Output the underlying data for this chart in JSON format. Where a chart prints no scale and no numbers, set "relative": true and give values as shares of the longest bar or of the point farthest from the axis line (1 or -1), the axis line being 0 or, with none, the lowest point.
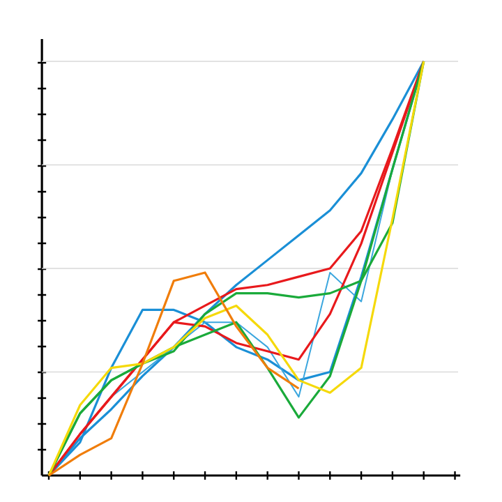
{
  "chart_data": {
    "type": "line",
    "relative": true,
    "grid": "y",
    "marker": "none",
    "line_style": "solid",
    "categories": [
      null,
      null,
      null,
      null,
      null,
      null,
      null,
      null,
      null,
      null,
      null,
      null,
      null,
      null
    ],
    "series": [
      {
        "color": "#1a8fd6",
        "values": [
          0,
          0.09,
          0.16,
          0.24,
          0.31,
          0.39,
          0.46,
          0.52,
          0.58,
          0.64,
          0.73,
          0.86,
          1,
          null
        ]
      },
      {
        "color": "#1a8fd6",
        "values": [
          0,
          0.08,
          0.26,
          0.4,
          0.4,
          0.37,
          0.31,
          0.28,
          0.23,
          0.25,
          0.48,
          0.74,
          1,
          null
        ]
      },
      {
        "color": "#3aa6de",
        "values": [
          0,
          0.1,
          0.19,
          0.25,
          0.31,
          0.37,
          0.37,
          0.31,
          0.19,
          0.49,
          0.42,
          0.74,
          1,
          null
        ]
      },
      {
        "color": "#e8191c",
        "values": [
          0,
          0.1,
          0.19,
          0.28,
          0.37,
          0.41,
          0.45,
          0.46,
          0.48,
          0.5,
          0.59,
          0.79,
          1,
          null
        ]
      },
      {
        "color": "#e8191c",
        "values": [
          0,
          0.1,
          0.19,
          0.28,
          0.37,
          0.36,
          0.32,
          0.3,
          0.28,
          0.39,
          0.56,
          0.78,
          1,
          null
        ]
      },
      {
        "color": "#1aaa3a",
        "values": [
          0,
          0.15,
          0.23,
          0.27,
          0.31,
          0.34,
          0.37,
          0.26,
          0.14,
          0.24,
          0.47,
          0.74,
          1,
          null
        ]
      },
      {
        "color": "#1aaa3a",
        "values": [
          0,
          0.15,
          0.23,
          0.27,
          0.3,
          0.39,
          0.44,
          0.44,
          0.43,
          0.44,
          0.47,
          0.61,
          1,
          null
        ]
      },
      {
        "color": "#f5d90a",
        "values": [
          0,
          0.17,
          0.26,
          0.27,
          0.31,
          0.38,
          0.41,
          0.34,
          0.23,
          0.2,
          0.26,
          0.62,
          1,
          null
        ]
      },
      {
        "color": "#f07d0a",
        "values": [
          0,
          0.05,
          0.09,
          0.27,
          0.47,
          0.49,
          0.36,
          0.26,
          0.21,
          null,
          null,
          null,
          null,
          null
        ]
      }
    ]
  }
}
